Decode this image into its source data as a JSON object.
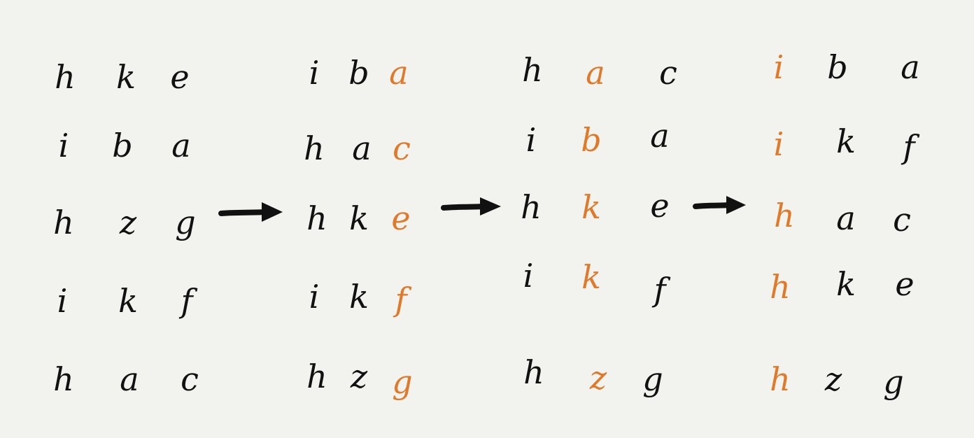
{
  "colors": {
    "background": "#f2f2ee",
    "ink": "#111111",
    "highlight": "#e07a2b"
  },
  "columns": [
    {
      "rows": [
        {
          "cells": [
            {
              "char": "h",
              "hl": false
            },
            {
              "char": "k",
              "hl": false
            },
            {
              "char": "e",
              "hl": false
            }
          ]
        },
        {
          "cells": [
            {
              "char": "i",
              "hl": false
            },
            {
              "char": "b",
              "hl": false
            },
            {
              "char": "a",
              "hl": false
            }
          ]
        },
        {
          "cells": [
            {
              "char": "h",
              "hl": false
            },
            {
              "char": "z",
              "hl": false
            },
            {
              "char": "g",
              "hl": false
            }
          ]
        },
        {
          "cells": [
            {
              "char": "i",
              "hl": false
            },
            {
              "char": "k",
              "hl": false
            },
            {
              "char": "f",
              "hl": false
            }
          ]
        },
        {
          "cells": [
            {
              "char": "h",
              "hl": false
            },
            {
              "char": "a",
              "hl": false
            },
            {
              "char": "c",
              "hl": false
            }
          ]
        }
      ]
    },
    {
      "rows": [
        {
          "cells": [
            {
              "char": "i",
              "hl": false
            },
            {
              "char": "b",
              "hl": false
            },
            {
              "char": "a",
              "hl": true
            }
          ]
        },
        {
          "cells": [
            {
              "char": "h",
              "hl": false
            },
            {
              "char": "a",
              "hl": false
            },
            {
              "char": "c",
              "hl": true
            }
          ]
        },
        {
          "cells": [
            {
              "char": "h",
              "hl": false
            },
            {
              "char": "k",
              "hl": false
            },
            {
              "char": "e",
              "hl": true
            }
          ]
        },
        {
          "cells": [
            {
              "char": "i",
              "hl": false
            },
            {
              "char": "k",
              "hl": false
            },
            {
              "char": "f",
              "hl": true
            }
          ]
        },
        {
          "cells": [
            {
              "char": "h",
              "hl": false
            },
            {
              "char": "z",
              "hl": false
            },
            {
              "char": "g",
              "hl": true
            }
          ]
        }
      ]
    },
    {
      "rows": [
        {
          "cells": [
            {
              "char": "h",
              "hl": false
            },
            {
              "char": "a",
              "hl": true
            },
            {
              "char": "c",
              "hl": false
            }
          ]
        },
        {
          "cells": [
            {
              "char": "i",
              "hl": false
            },
            {
              "char": "b",
              "hl": true
            },
            {
              "char": "a",
              "hl": false
            }
          ]
        },
        {
          "cells": [
            {
              "char": "h",
              "hl": false
            },
            {
              "char": "k",
              "hl": true
            },
            {
              "char": "e",
              "hl": false
            }
          ]
        },
        {
          "cells": [
            {
              "char": "i",
              "hl": false
            },
            {
              "char": "k",
              "hl": true
            },
            {
              "char": "f",
              "hl": false
            }
          ]
        },
        {
          "cells": [
            {
              "char": "h",
              "hl": false
            },
            {
              "char": "z",
              "hl": true
            },
            {
              "char": "g",
              "hl": false
            }
          ]
        }
      ]
    },
    {
      "rows": [
        {
          "cells": [
            {
              "char": "i",
              "hl": true
            },
            {
              "char": "b",
              "hl": false
            },
            {
              "char": "a",
              "hl": false
            }
          ]
        },
        {
          "cells": [
            {
              "char": "i",
              "hl": true
            },
            {
              "char": "k",
              "hl": false
            },
            {
              "char": "f",
              "hl": false
            }
          ]
        },
        {
          "cells": [
            {
              "char": "h",
              "hl": true
            },
            {
              "char": "a",
              "hl": false
            },
            {
              "char": "c",
              "hl": false
            }
          ]
        },
        {
          "cells": [
            {
              "char": "h",
              "hl": true
            },
            {
              "char": "k",
              "hl": false
            },
            {
              "char": "e",
              "hl": false
            }
          ]
        },
        {
          "cells": [
            {
              "char": "h",
              "hl": true
            },
            {
              "char": "z",
              "hl": false
            },
            {
              "char": "g",
              "hl": false
            }
          ]
        }
      ]
    }
  ],
  "arrows": [
    {
      "icon": "right-arrow-icon"
    },
    {
      "icon": "right-arrow-icon"
    },
    {
      "icon": "right-arrow-icon"
    }
  ]
}
